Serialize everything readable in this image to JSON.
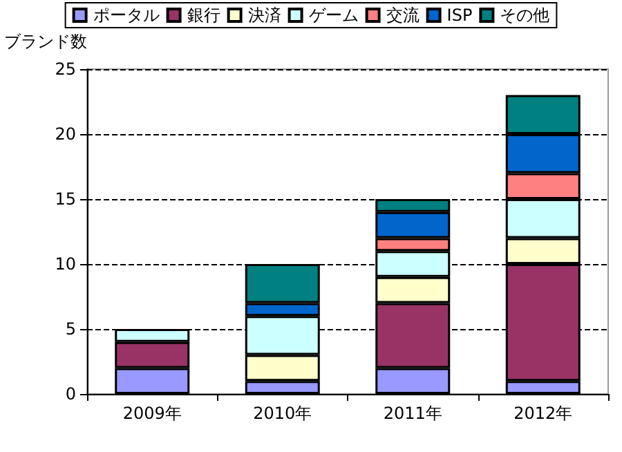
{
  "chart_data": {
    "type": "bar",
    "stacked": true,
    "ylabel": "ブランド数",
    "categories": [
      "2009年",
      "2010年",
      "2011年",
      "2012年"
    ],
    "series": [
      {
        "name": "ポータル",
        "color": "#9999ff",
        "values": [
          2,
          1,
          2,
          1
        ]
      },
      {
        "name": "銀行",
        "color": "#993366",
        "values": [
          2,
          null,
          5,
          9
        ]
      },
      {
        "name": "決済",
        "color": "#ffffcc",
        "values": [
          null,
          2,
          2,
          2
        ]
      },
      {
        "name": "ゲーム",
        "color": "#ccffff",
        "values": [
          1,
          3,
          2,
          3
        ]
      },
      {
        "name": "交流",
        "color": "#ff8080",
        "values": [
          null,
          null,
          1,
          2
        ]
      },
      {
        "name": "ISP",
        "color": "#0066cc",
        "values": [
          null,
          1,
          2,
          3
        ]
      },
      {
        "name": "その他",
        "color": "#008080",
        "values": [
          null,
          3,
          1,
          3
        ]
      }
    ],
    "ylim": [
      0,
      25
    ],
    "yticks": [
      0,
      5,
      10,
      15,
      20,
      25
    ],
    "grid": "y",
    "legend": "top"
  }
}
